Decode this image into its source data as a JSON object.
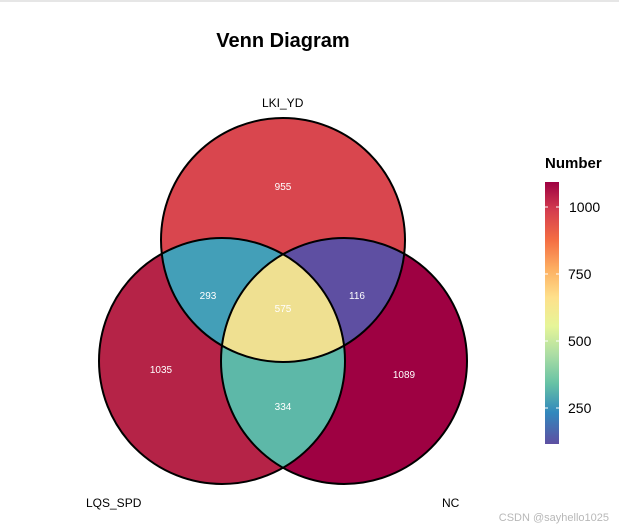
{
  "title": "Venn Diagram",
  "sets": [
    {
      "name": "LKI_YD"
    },
    {
      "name": "LQS_SPD"
    },
    {
      "name": "NC"
    }
  ],
  "regions": [
    {
      "id": "LKI_YD-only",
      "value": 955,
      "color": "#D9464E"
    },
    {
      "id": "LQS_SPD-only",
      "value": 1035,
      "color": "#B52347"
    },
    {
      "id": "NC-only",
      "value": 1089,
      "color": "#9E0142"
    },
    {
      "id": "LKI_YD-LQS_SPD",
      "value": 293,
      "color": "#439FB8"
    },
    {
      "id": "LKI_YD-NC",
      "value": 116,
      "color": "#5E4FA2"
    },
    {
      "id": "LQS_SPD-NC",
      "value": 334,
      "color": "#5DB8A8"
    },
    {
      "id": "all-three",
      "value": 575,
      "color": "#EFE091"
    }
  ],
  "legend": {
    "title": "Number",
    "ticks": [
      "1000",
      "750",
      "500",
      "250"
    ],
    "gradient": [
      "#9E0142",
      "#D53E4F",
      "#F46D43",
      "#FDAE61",
      "#FEE08B",
      "#E6F598",
      "#ABDDA4",
      "#66C2A5",
      "#3288BD",
      "#5E4FA2"
    ]
  },
  "watermark": "CSDN @sayhello1025"
}
